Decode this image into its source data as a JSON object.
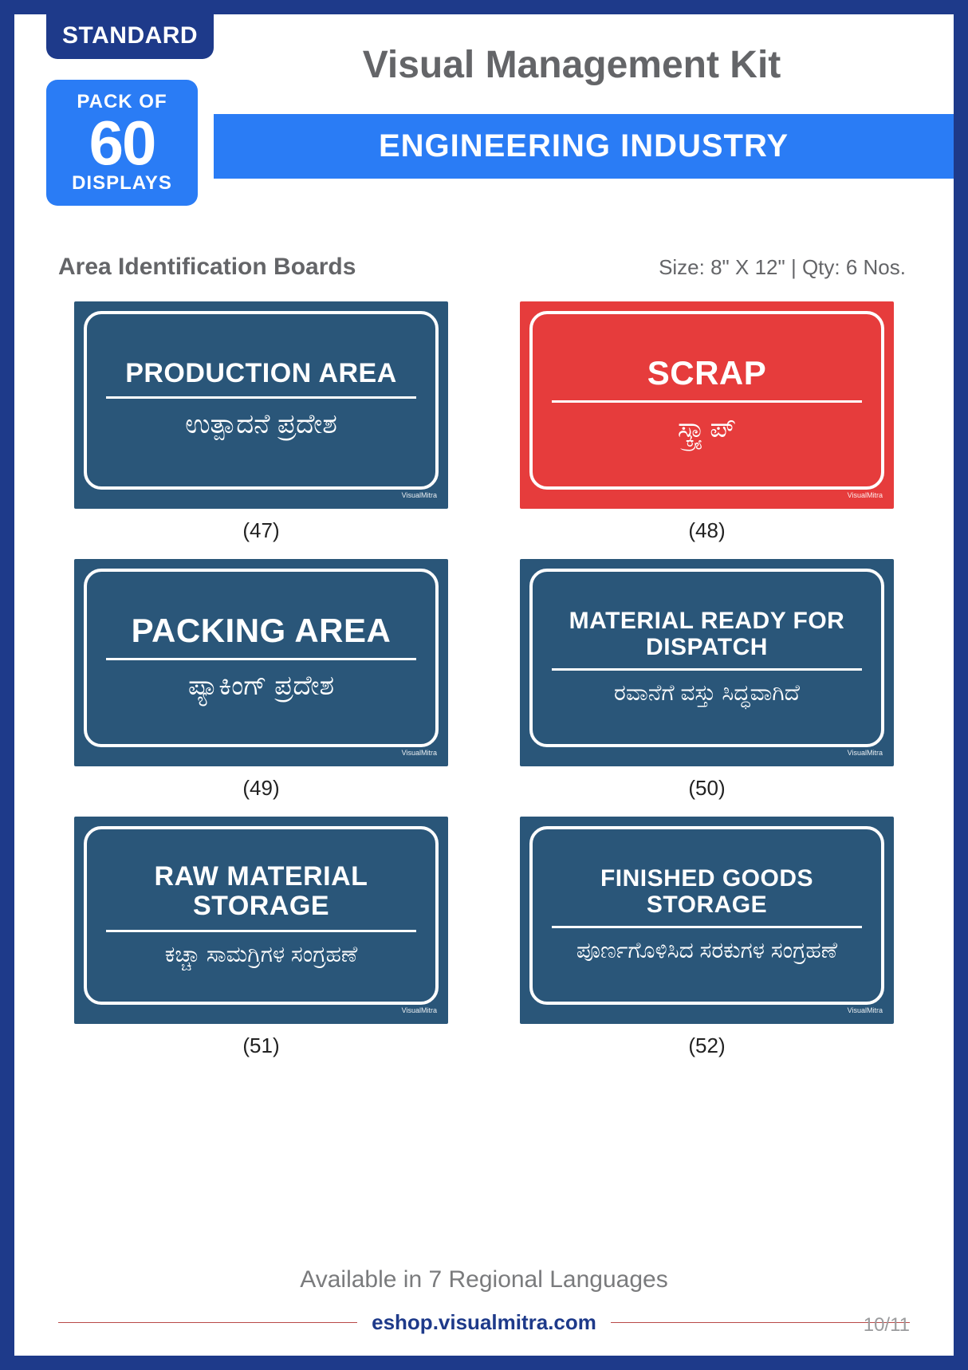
{
  "colors": {
    "frame": "#1e3a8a",
    "accent": "#2a7cf5",
    "board_blue": "#2a5679",
    "board_red": "#e63c3c",
    "text_gray": "#646568",
    "footer_line": "#b94a48"
  },
  "badges": {
    "standard": "STANDARD",
    "pack_of": "PACK OF",
    "pack_number": "60",
    "displays": "DISPLAYS"
  },
  "title": "Visual Management Kit",
  "banner": "ENGINEERING INDUSTRY",
  "section": {
    "title": "Area Identification Boards",
    "size_label": "Size: ",
    "size_value": "8\" X 12\"",
    "sep": " | ",
    "qty_label": "Qty: ",
    "qty_value": "6 Nos."
  },
  "boards": [
    {
      "num": "(47)",
      "bg": "#2a5679",
      "en": "PRODUCTION AREA",
      "local": "ಉತ್ಪಾದನೆ ಪ್ರದೇಶ"
    },
    {
      "num": "(48)",
      "bg": "#e63c3c",
      "en": "SCRAP",
      "local": "ಸ್ಕ್ರ್ಯಾಪ್"
    },
    {
      "num": "(49)",
      "bg": "#2a5679",
      "en": "PACKING AREA",
      "local": "ಪ್ಯಾಕಿಂಗ್ ಪ್ರದೇಶ"
    },
    {
      "num": "(50)",
      "bg": "#2a5679",
      "en": "MATERIAL READY FOR DISPATCH",
      "local": "ರವಾನೆಗೆ ವಸ್ತು ಸಿದ್ಧವಾಗಿದೆ"
    },
    {
      "num": "(51)",
      "bg": "#2a5679",
      "en": "RAW MATERIAL STORAGE",
      "local": "ಕಚ್ಚಾ ಸಾಮಗ್ರಿಗಳ ಸಂಗ್ರಹಣೆ"
    },
    {
      "num": "(52)",
      "bg": "#2a5679",
      "en": "FINISHED GOODS STORAGE",
      "local": "ಪೂರ್ಣಗೊಳಿಸಿದ ಸರಕುಗಳ ಸಂಗ್ರಹಣೆ"
    }
  ],
  "availability": "Available in 7 Regional Languages",
  "footer": {
    "url": "eshop.visualmitra.com",
    "page": "10/11"
  }
}
